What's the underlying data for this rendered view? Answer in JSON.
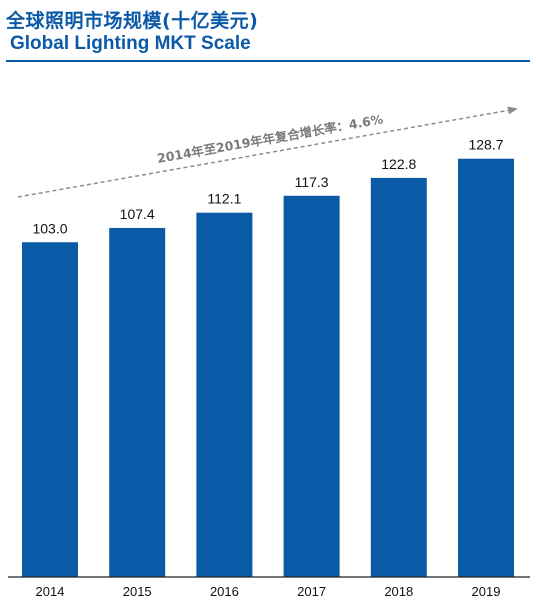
{
  "header": {
    "title_zh": "全球照明市场规模(十亿美元)",
    "title_en": "Global Lighting MKT Scale"
  },
  "colors": {
    "accent": "#0b5aa8",
    "bar": "#0b5aa8",
    "trend_arrow": "#8c8c8c"
  },
  "chart_data": {
    "type": "bar",
    "title": "全球照明市场规模(十亿美元)",
    "subtitle": "Global Lighting MKT Scale",
    "categories": [
      "2014",
      "2015",
      "2016",
      "2017",
      "2018",
      "2019"
    ],
    "values": [
      103.0,
      107.4,
      112.1,
      117.3,
      122.8,
      128.7
    ],
    "value_labels": [
      "103.0",
      "107.4",
      "112.1",
      "117.3",
      "122.8",
      "128.7"
    ],
    "annotation": "2014年至2019年年复合增长率：4.6%",
    "xlabel": "",
    "ylabel": "",
    "ylim": [
      0,
      140
    ],
    "grid": false,
    "legend": "none"
  }
}
